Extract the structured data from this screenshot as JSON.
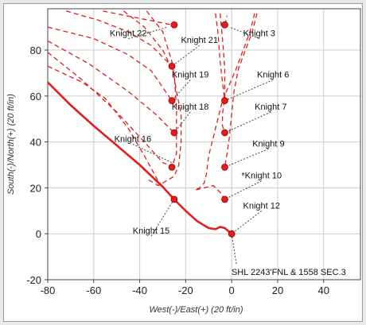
{
  "chart_data": {
    "type": "line",
    "xlabel": "West(-)/East(+) (20 ft/in)",
    "ylabel": "South(-)/North(+) (20 ft/in)",
    "xlim": [
      -80,
      56
    ],
    "ylim": [
      -20,
      98
    ],
    "x_ticks": [
      "-80",
      "-60",
      "-40",
      "-20",
      "0",
      "20",
      "40"
    ],
    "y_ticks": [
      "-20",
      "0",
      "20",
      "40",
      "60",
      "80"
    ],
    "grid": true,
    "colors": {
      "line": "#dd1f1f",
      "grid": "#cccccc",
      "axis": "#444444",
      "leader": "#333333"
    },
    "series": [
      {
        "style": "solid",
        "points": [
          [
            -80,
            66
          ],
          [
            -70,
            56
          ],
          [
            -60,
            47
          ],
          [
            -50,
            38.5
          ],
          [
            -40,
            30
          ],
          [
            -30,
            20.5
          ],
          [
            -25,
            15
          ],
          [
            -20,
            10
          ],
          [
            -15,
            5.5
          ],
          [
            -10,
            2.5
          ],
          [
            -7,
            2
          ],
          [
            -5,
            3
          ],
          [
            -3,
            2.5
          ],
          [
            0,
            0
          ]
        ]
      },
      {
        "style": "dashed",
        "points": [
          [
            -80,
            90
          ],
          [
            -60,
            85
          ],
          [
            -45,
            78
          ],
          [
            -35,
            71
          ],
          [
            -26,
            58
          ]
        ]
      },
      {
        "style": "dashed",
        "points": [
          [
            -80,
            84
          ],
          [
            -62,
            74
          ],
          [
            -45,
            62
          ],
          [
            -33,
            52
          ],
          [
            -25,
            44
          ]
        ]
      },
      {
        "style": "dashed",
        "points": [
          [
            -80,
            79
          ],
          [
            -65,
            67
          ],
          [
            -50,
            53
          ],
          [
            -38,
            40
          ],
          [
            -30,
            31
          ],
          [
            -25,
            29
          ]
        ]
      },
      {
        "style": "dashed",
        "points": [
          [
            -80,
            73
          ],
          [
            -65,
            66
          ],
          [
            -55,
            59
          ],
          [
            -45,
            46
          ],
          [
            -38,
            34
          ],
          [
            -32,
            23
          ],
          [
            -25,
            15
          ]
        ]
      },
      {
        "style": "dashed",
        "points": [
          [
            -72,
            97
          ],
          [
            -58,
            93
          ],
          [
            -45,
            88
          ],
          [
            -35,
            82
          ],
          [
            -26,
            73
          ]
        ]
      },
      {
        "style": "dashed",
        "points": [
          [
            -56,
            97
          ],
          [
            -46,
            95
          ],
          [
            -36,
            93
          ],
          [
            -26,
            91
          ]
        ]
      },
      {
        "style": "dashed",
        "points": [
          [
            -47,
            97
          ],
          [
            -38,
            90
          ],
          [
            -30,
            80
          ],
          [
            -25,
            70
          ],
          [
            -24,
            55
          ],
          [
            -24,
            35
          ],
          [
            -26,
            29
          ]
        ]
      },
      {
        "style": "dashed",
        "points": [
          [
            -37,
            97
          ],
          [
            -30,
            88
          ],
          [
            -26,
            75
          ],
          [
            -24,
            62
          ],
          [
            -22,
            52
          ],
          [
            -22,
            40
          ],
          [
            -23,
            30
          ],
          [
            -25,
            25
          ],
          [
            -32,
            21
          ],
          [
            -37,
            24
          ]
        ]
      },
      {
        "style": "dashed",
        "points": [
          [
            -7,
            96
          ],
          [
            -6,
            88
          ],
          [
            -5,
            75
          ],
          [
            -4,
            66
          ],
          [
            -3,
            58
          ]
        ]
      },
      {
        "style": "dashed",
        "points": [
          [
            -5,
            96
          ],
          [
            -4,
            85
          ],
          [
            -3,
            72
          ],
          [
            -3,
            60
          ],
          [
            -4,
            52
          ],
          [
            -4,
            47
          ],
          [
            -3,
            44
          ]
        ]
      },
      {
        "style": "dashed",
        "points": [
          [
            -3,
            91
          ],
          [
            -2,
            95
          ]
        ]
      },
      {
        "style": "dashed",
        "points": [
          [
            10,
            96
          ],
          [
            8,
            88
          ],
          [
            5,
            80
          ],
          [
            2,
            72
          ],
          [
            -1,
            65
          ],
          [
            -4,
            58
          ],
          [
            -6,
            50
          ],
          [
            -8,
            42
          ],
          [
            -10,
            34
          ],
          [
            -11,
            26
          ],
          [
            -12,
            22
          ],
          [
            -14,
            20
          ],
          [
            -16,
            19
          ],
          [
            -12,
            20
          ],
          [
            -8,
            21
          ],
          [
            -5,
            18
          ],
          [
            -3,
            15
          ]
        ]
      },
      {
        "style": "dashed",
        "points": [
          [
            11,
            96
          ],
          [
            9,
            88
          ],
          [
            6,
            80
          ],
          [
            3,
            72
          ],
          [
            1,
            62
          ],
          [
            0,
            52
          ],
          [
            -1,
            42
          ],
          [
            -2,
            35
          ],
          [
            -3,
            29
          ]
        ]
      }
    ],
    "markers": [
      [
        -25,
        91
      ],
      [
        -26,
        73
      ],
      [
        -26,
        58
      ],
      [
        -25,
        44
      ],
      [
        -26,
        29
      ],
      [
        -25,
        15
      ],
      [
        -3,
        91
      ],
      [
        -3,
        58
      ],
      [
        -3,
        44
      ],
      [
        -3,
        29
      ],
      [
        -3,
        15
      ],
      [
        0,
        0
      ]
    ],
    "annotations": [
      {
        "text": "Knight 22",
        "label_at": [
          -45,
          85
        ],
        "points_to": [
          -28,
          90
        ]
      },
      {
        "text": "Knight 21",
        "label_at": [
          -14,
          82
        ],
        "points_to": [
          -26,
          73
        ]
      },
      {
        "text": "Knight 19",
        "label_at": [
          -18,
          67
        ],
        "points_to": [
          -26,
          58
        ]
      },
      {
        "text": "Knight 18",
        "label_at": [
          -18,
          53
        ],
        "points_to": [
          -25,
          44
        ]
      },
      {
        "text": "Knight 16",
        "label_at": [
          -43,
          39
        ],
        "points_to": [
          -26,
          31
        ]
      },
      {
        "text": "Knight 15",
        "label_at": [
          -35,
          -1
        ],
        "points_to": [
          -25,
          15
        ]
      },
      {
        "text": "Knight 3",
        "label_at": [
          12,
          85
        ],
        "points_to": [
          -1,
          90
        ]
      },
      {
        "text": "Knight 6",
        "label_at": [
          18,
          67
        ],
        "points_to": [
          -3,
          58
        ]
      },
      {
        "text": "Knight 7",
        "label_at": [
          17,
          53
        ],
        "points_to": [
          -3,
          44
        ]
      },
      {
        "text": "Knight 9",
        "label_at": [
          16,
          37
        ],
        "points_to": [
          -3,
          29
        ]
      },
      {
        "text": "*Knight 10",
        "label_at": [
          13,
          23
        ],
        "points_to": [
          -3,
          15
        ]
      },
      {
        "text": "Knight 12",
        "label_at": [
          13,
          10
        ],
        "points_to": [
          0,
          0
        ]
      },
      {
        "text": "SHL 2243'FNL & 1558 SEC.3",
        "label_at": [
          2,
          -13
        ],
        "points_to": [
          0,
          0
        ]
      }
    ]
  }
}
